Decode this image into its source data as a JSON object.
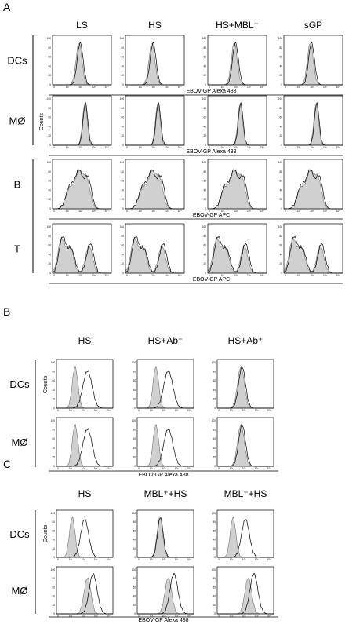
{
  "sections": [
    {
      "letter": "A",
      "columns": [
        "LS",
        "HS",
        "HS+MBL⁺",
        "sGP"
      ],
      "rows": [
        {
          "label": "DCs",
          "axis_label": "EBOV-GP Alexa 488"
        },
        {
          "label": "MØ",
          "axis_label": "EBOV-GP Alexa 488"
        },
        {
          "label": "B",
          "axis_label": "EBOV-GP APC"
        },
        {
          "label": "T",
          "axis_label": "EBOV-GP APC"
        }
      ],
      "y_label": "Counts"
    },
    {
      "letter": "B",
      "columns": [
        "HS",
        "HS+Ab⁻",
        "HS+Ab⁺"
      ],
      "rows": [
        {
          "label": "DCs"
        },
        {
          "label": "MØ"
        }
      ],
      "axis_label": "EBOV-GP Alexa 488",
      "y_label": "Counts"
    },
    {
      "letter": "C",
      "columns": [
        "HS",
        "MBL⁺+HS",
        "MBL⁻+HS"
      ],
      "rows": [
        {
          "label": "DCs"
        },
        {
          "label": "MØ"
        }
      ],
      "axis_label": "EBOV-GP Alexa 488",
      "y_label": "Counts"
    }
  ],
  "y_ticks": [
    "0",
    "20",
    "40",
    "60",
    "80",
    "100"
  ],
  "x_ticks": [
    "0",
    "10¹",
    "10²",
    "10³",
    "10⁴"
  ]
}
